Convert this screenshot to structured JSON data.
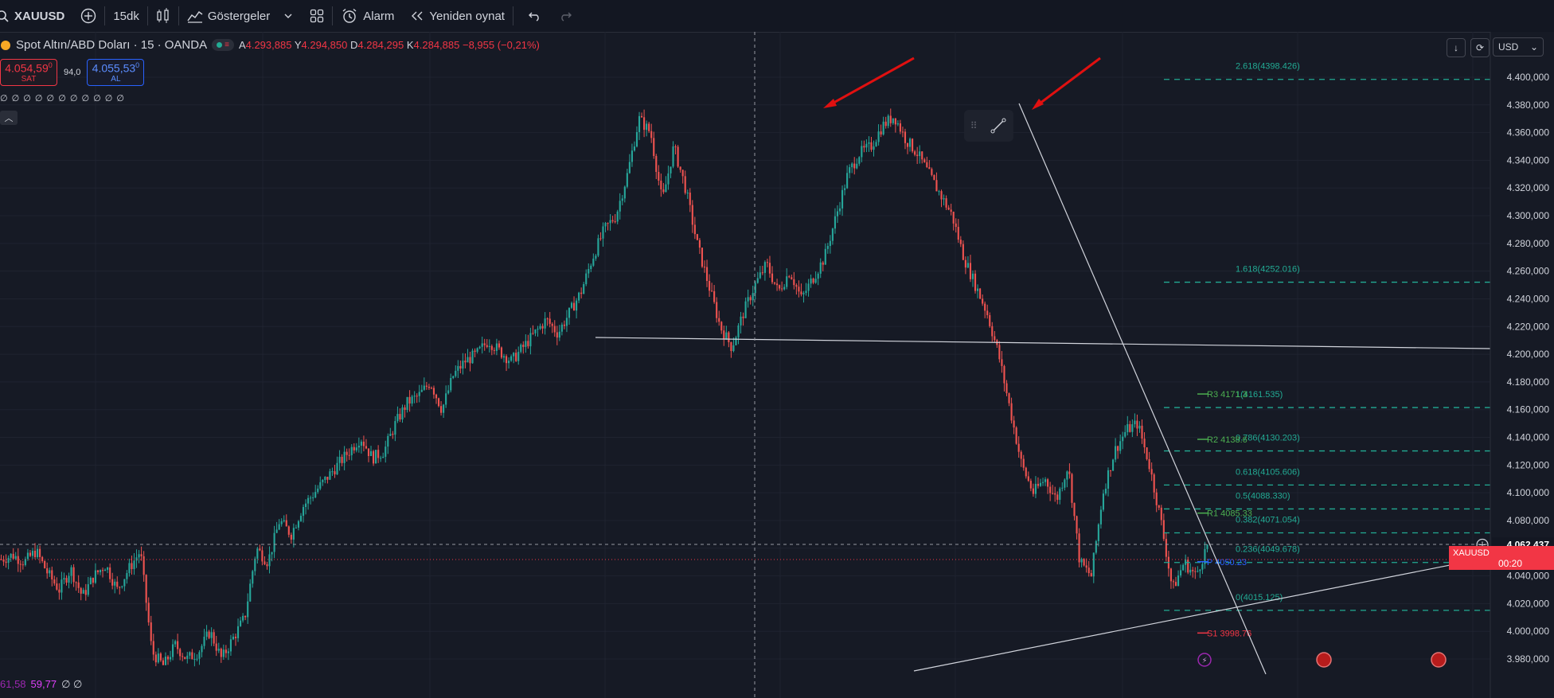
{
  "toolbar": {
    "symbol": "XAUUSD",
    "interval": "15dk",
    "indicators_label": "Göstergeler",
    "alarm_label": "Alarm",
    "replay_label": "Yeniden oynat"
  },
  "legend": {
    "title": "Spot Altın/ABD Doları · 15 · OANDA",
    "open_label": "A",
    "open": "4.293,885",
    "high_label": "Y",
    "high": "4.294,850",
    "low_label": "D",
    "low": "4.284,295",
    "close_label": "K",
    "close": "4.284,885",
    "change": "−8,955 (−0,21%)"
  },
  "quote": {
    "sell_price": "4.054,59",
    "sell_sup": "0",
    "sell_label": "SAT",
    "spread": "94,0",
    "buy_price": "4.055,53",
    "buy_sup": "0",
    "buy_label": "AL"
  },
  "indicator_row": "∅ ∅ ∅ ∅ ∅ ∅ ∅ ∅ ∅ ∅ ∅",
  "bottom_values": {
    "a": "61,58",
    "b": "59,77",
    "c": "∅ ∅"
  },
  "currency": "USD",
  "price_axis": {
    "current_price": "4.062,437",
    "symbol_tag": "XAUUSD",
    "countdown": "00:20"
  },
  "colors": {
    "bg": "#161a25",
    "up": "#26a69a",
    "down": "#ef5350",
    "fib": "#22ab94",
    "arrow": "#e01010"
  },
  "chart_data": {
    "type": "candlestick",
    "title": "Spot Altın/ABD Doları · 15 · OANDA",
    "ylim": [
      3960,
      4410
    ],
    "y_ticks": [
      4400,
      4380,
      4360,
      4340,
      4320,
      4300,
      4280,
      4260,
      4240,
      4220,
      4200,
      4180,
      4160,
      4140,
      4120,
      4100,
      4080,
      4060,
      4040,
      4020,
      4000,
      3980
    ],
    "y_tick_labels": [
      "4.400,000",
      "4.380,000",
      "4.360,000",
      "4.340,000",
      "4.320,000",
      "4.300,000",
      "4.280,000",
      "4.260,000",
      "4.240,000",
      "4.220,000",
      "4.200,000",
      "4.180,000",
      "4.160,000",
      "4.140,000",
      "4.120,000",
      "4.100,000",
      "4.080,000",
      "4.060,000",
      "4.040,000",
      "4.020,000",
      "4.000,000",
      "3.980,000"
    ],
    "price_path": [
      4052,
      4055,
      4050,
      4058,
      4042,
      4030,
      4045,
      4025,
      4040,
      4048,
      4030,
      4045,
      4058,
      3985,
      3975,
      3990,
      3980,
      3985,
      4000,
      3980,
      3995,
      4010,
      4060,
      4050,
      4080,
      4070,
      4090,
      4100,
      4110,
      4120,
      4130,
      4140,
      4125,
      4130,
      4150,
      4165,
      4170,
      4180,
      4160,
      4185,
      4195,
      4200,
      4210,
      4202,
      4195,
      4205,
      4215,
      4225,
      4215,
      4230,
      4245,
      4270,
      4290,
      4300,
      4330,
      4370,
      4360,
      4310,
      4350,
      4320,
      4280,
      4250,
      4220,
      4205,
      4230,
      4250,
      4265,
      4245,
      4260,
      4240,
      4255,
      4270,
      4300,
      4330,
      4345,
      4350,
      4365,
      4372,
      4355,
      4345,
      4330,
      4315,
      4300,
      4270,
      4250,
      4230,
      4200,
      4160,
      4120,
      4100,
      4110,
      4095,
      4120,
      4050,
      4040,
      4100,
      4130,
      4145,
      4150,
      4120,
      4080,
      4030,
      4050,
      4040,
      4062
    ],
    "fibonacci": [
      {
        "level": "2.618",
        "value": 4398.426,
        "label": "2.618(4398.426)"
      },
      {
        "level": "1.618",
        "value": 4252.016,
        "label": "1.618(4252.016)"
      },
      {
        "level": "1",
        "value": 4161.535,
        "label": "1(4161.535)"
      },
      {
        "level": "0.786",
        "value": 4130.203,
        "label": "0.786(4130.203)"
      },
      {
        "level": "0.618",
        "value": 4105.606,
        "label": "0.618(4105.606)"
      },
      {
        "level": "0.5",
        "value": 4088.33,
        "label": "0.5(4088.330)"
      },
      {
        "level": "0.382",
        "value": 4071.054,
        "label": "0.382(4071.054)"
      },
      {
        "level": "0.236",
        "value": 4049.678,
        "label": "0.236(4049.678)"
      },
      {
        "level": "0",
        "value": 4015.125,
        "label": "0(4015.125)"
      }
    ],
    "pivots": [
      {
        "name": "R3",
        "value": 4171.3,
        "label": "R3 4171.3"
      },
      {
        "name": "R2",
        "value": 4138.6,
        "label": "R2 4138.6"
      },
      {
        "name": "R1",
        "value": 4085.33,
        "label": "R1 4085.33"
      },
      {
        "name": "P",
        "value": 4050.23,
        "label": "P 4050.23"
      },
      {
        "name": "S1",
        "value": 3998.76,
        "label": "S1 3998.76"
      }
    ],
    "current_price": 4062.437
  }
}
